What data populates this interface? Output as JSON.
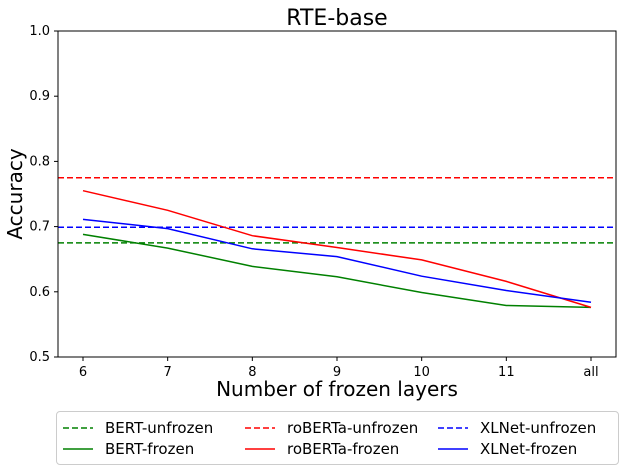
{
  "chart_data": {
    "type": "line",
    "title": "RTE-base",
    "xlabel": "Number of frozen layers",
    "ylabel": "Accuracy",
    "categories": [
      "6",
      "7",
      "8",
      "9",
      "10",
      "11",
      "all"
    ],
    "ylim": [
      0.5,
      1.0
    ],
    "yticks": [
      "0.5",
      "0.6",
      "0.7",
      "0.8",
      "0.9",
      "1.0"
    ],
    "grid": false,
    "legend_placement": "bottom",
    "series": [
      {
        "name": "BERT-unfrozen",
        "style": "dashed",
        "color": "#008000",
        "constant": 0.675
      },
      {
        "name": "BERT-frozen",
        "style": "solid",
        "color": "#008000",
        "values": [
          0.688,
          0.667,
          0.639,
          0.623,
          0.599,
          0.579,
          0.576
        ]
      },
      {
        "name": "roBERTa-unfrozen",
        "style": "dashed",
        "color": "#ff0000",
        "constant": 0.775
      },
      {
        "name": "roBERTa-frozen",
        "style": "solid",
        "color": "#ff0000",
        "values": [
          0.755,
          0.725,
          0.686,
          0.668,
          0.649,
          0.616,
          0.576
        ]
      },
      {
        "name": "XLNet-unfrozen",
        "style": "dashed",
        "color": "#0000ff",
        "constant": 0.699
      },
      {
        "name": "XLNet-frozen",
        "style": "solid",
        "color": "#0000ff",
        "values": [
          0.711,
          0.697,
          0.666,
          0.654,
          0.624,
          0.602,
          0.584
        ]
      }
    ]
  }
}
